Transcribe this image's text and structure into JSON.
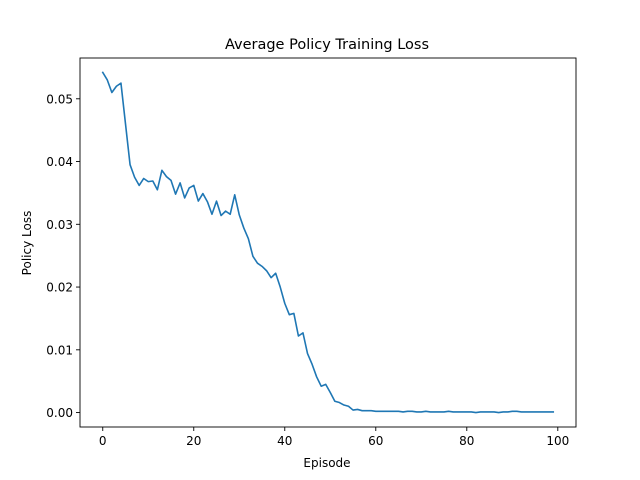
{
  "chart_data": {
    "type": "line",
    "title": "Average Policy Training Loss",
    "xlabel": "Episode",
    "ylabel": "Policy Loss",
    "xlim": [
      -5,
      104
    ],
    "ylim": [
      -0.0023,
      0.0565
    ],
    "xticks": [
      0,
      20,
      40,
      60,
      80,
      100
    ],
    "xtick_labels": [
      "0",
      "20",
      "40",
      "60",
      "80",
      "100"
    ],
    "yticks": [
      0.0,
      0.01,
      0.02,
      0.03,
      0.04,
      0.05
    ],
    "ytick_labels": [
      "0.00",
      "0.01",
      "0.02",
      "0.03",
      "0.04",
      "0.05"
    ],
    "grid": false,
    "series_color": "#1f77b4",
    "series": [
      {
        "x": [
          0,
          1,
          2,
          3,
          4,
          5,
          6,
          7,
          8,
          9,
          10,
          11,
          12,
          13,
          14,
          15,
          16,
          17,
          18,
          19,
          20,
          21,
          22,
          23,
          24,
          25,
          26,
          27,
          28,
          29,
          30,
          31,
          32,
          33,
          34,
          35,
          36,
          37,
          38,
          39,
          40,
          41,
          42,
          43,
          44,
          45,
          46,
          47,
          48,
          49,
          50,
          51,
          52,
          53,
          54,
          55,
          56,
          57,
          58,
          59,
          60,
          61,
          62,
          63,
          64,
          65,
          66,
          67,
          68,
          69,
          70,
          71,
          72,
          73,
          74,
          75,
          76,
          77,
          78,
          79,
          80,
          81,
          82,
          83,
          84,
          85,
          86,
          87,
          88,
          89,
          90,
          91,
          92,
          93,
          94,
          95,
          96,
          97,
          98,
          99
        ],
        "values": [
          0.0542,
          0.053,
          0.051,
          0.052,
          0.0525,
          0.046,
          0.0395,
          0.0375,
          0.0362,
          0.0373,
          0.0368,
          0.0369,
          0.0355,
          0.0386,
          0.0376,
          0.037,
          0.0348,
          0.0366,
          0.0342,
          0.0358,
          0.0362,
          0.0337,
          0.0349,
          0.0336,
          0.0316,
          0.0337,
          0.0314,
          0.0321,
          0.0316,
          0.0347,
          0.0315,
          0.0294,
          0.0277,
          0.0249,
          0.0238,
          0.0233,
          0.0226,
          0.0215,
          0.0222,
          0.02,
          0.0174,
          0.0156,
          0.0158,
          0.0122,
          0.0127,
          0.0094,
          0.0077,
          0.0057,
          0.0042,
          0.0045,
          0.0032,
          0.0018,
          0.0016,
          0.0012,
          0.001,
          0.0004,
          0.0005,
          0.0003,
          0.0003,
          0.0003,
          0.0002,
          0.0002,
          0.0002,
          0.0002,
          0.0002,
          0.0002,
          0.0001,
          0.0002,
          0.0002,
          0.0001,
          0.0001,
          0.0002,
          0.0001,
          0.0001,
          0.0001,
          0.0001,
          0.0002,
          0.0001,
          0.0001,
          0.0001,
          0.0001,
          0.0001,
          0.0,
          0.0001,
          0.0001,
          0.0001,
          0.0001,
          0.0,
          0.0001,
          0.0001,
          0.0002,
          0.0002,
          0.0001,
          0.0001,
          0.0001,
          0.0001,
          0.0001,
          0.0001,
          0.0001,
          0.0001
        ]
      }
    ]
  }
}
